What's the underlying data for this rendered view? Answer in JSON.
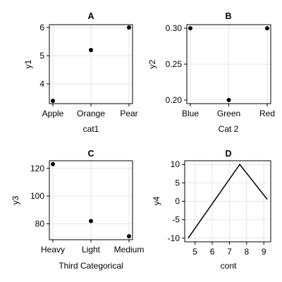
{
  "chart_data": [
    {
      "type": "scatter",
      "title": "A",
      "xlabel": "cat1",
      "ylabel": "y1",
      "categories": [
        "Apple",
        "Orange",
        "Pear"
      ],
      "values": [
        3.4,
        5.2,
        6.0
      ],
      "yticks": [
        4,
        5,
        6
      ],
      "ylim": [
        3.3,
        6.1
      ],
      "grid": true,
      "color": "#000000"
    },
    {
      "type": "scatter",
      "title": "B",
      "xlabel": "Cat 2",
      "ylabel": "y2",
      "categories": [
        "Blue",
        "Green",
        "Red"
      ],
      "values": [
        0.3,
        0.2,
        0.3
      ],
      "yticks": [
        0.2,
        0.25,
        0.3
      ],
      "ytick_labels": [
        "0.20",
        "0.25",
        "0.30"
      ],
      "ylim": [
        0.195,
        0.305
      ],
      "grid": true,
      "color": "#000000"
    },
    {
      "type": "scatter",
      "title": "C",
      "xlabel": "Third Categorical",
      "ylabel": "y3",
      "categories": [
        "Heavy",
        "Light",
        "Medium"
      ],
      "values": [
        123,
        82,
        71
      ],
      "yticks": [
        80,
        100,
        120
      ],
      "ylim": [
        68.5,
        125.5
      ],
      "grid": true,
      "color": "#000000"
    },
    {
      "type": "line",
      "title": "D",
      "xlabel": "cont",
      "ylabel": "y4",
      "x": [
        4.6,
        7.6,
        9.2
      ],
      "y": [
        -10,
        10,
        0.5
      ],
      "xticks": [
        5,
        6,
        7,
        8,
        9
      ],
      "yticks": [
        -10,
        -5,
        0,
        5,
        10
      ],
      "xlim": [
        4.4,
        9.4
      ],
      "ylim": [
        -11,
        11
      ],
      "grid": true,
      "color": "#000000"
    }
  ]
}
